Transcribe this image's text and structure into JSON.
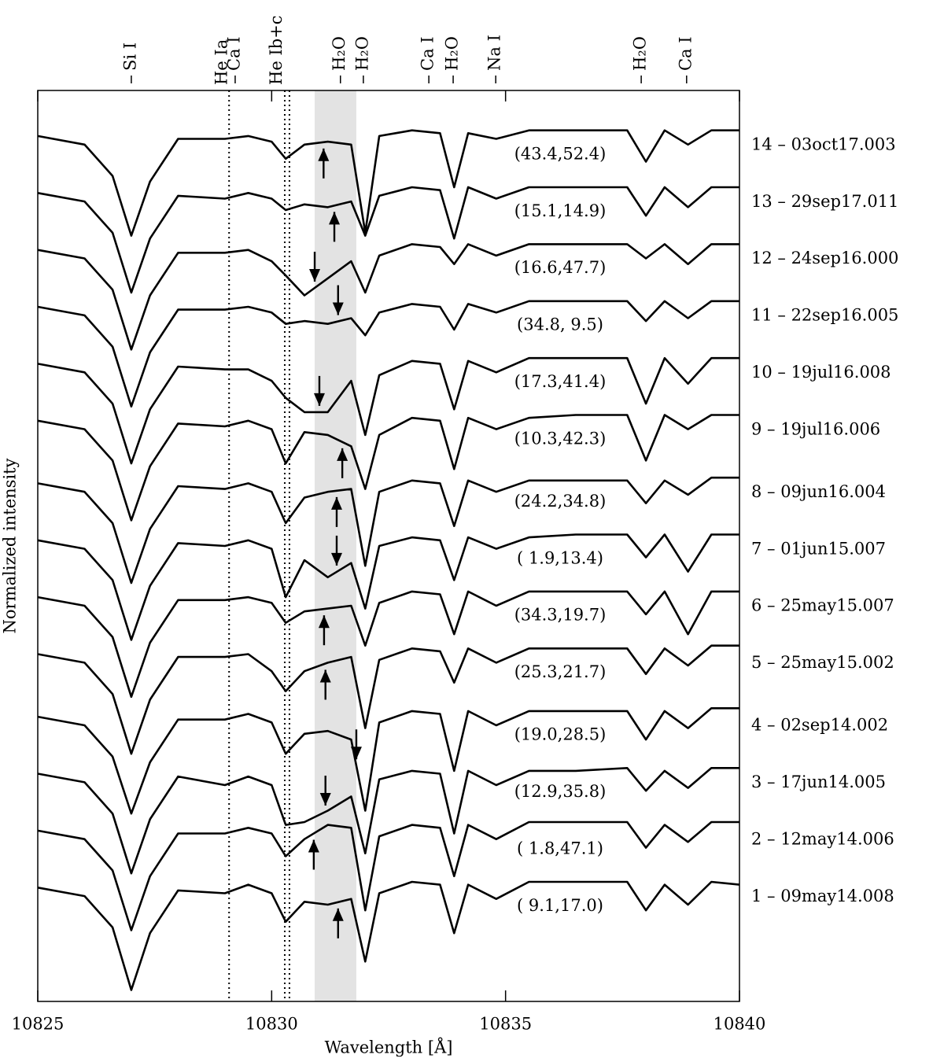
{
  "chart_data": {
    "type": "line",
    "x_label": "Wavelength [Å]",
    "y_label": "Normalized intensity",
    "xlim": [
      10825,
      10840
    ],
    "ylim": [
      0,
      16
    ],
    "xticks": [
      10825,
      10830,
      10835,
      10840
    ],
    "shaded_band": [
      10830.92,
      10831.81
    ],
    "shade_color": "#e3e3e3",
    "dotted_lines": [
      10829.09,
      10830.28,
      10830.38
    ],
    "line_labels": [
      {
        "label": "Si I",
        "x": 10827.0,
        "dash": true
      },
      {
        "label": "He Ia",
        "x": 10828.95,
        "dash": false
      },
      {
        "label": "Ca I",
        "x": 10829.22,
        "dash": true
      },
      {
        "label": "He Ib+c",
        "x": 10830.12,
        "dash": false
      },
      {
        "label": "H₂O",
        "x": 10831.47,
        "dash": true
      },
      {
        "label": "H₂O",
        "x": 10831.96,
        "dash": true
      },
      {
        "label": "Ca I",
        "x": 10833.36,
        "dash": true
      },
      {
        "label": "H₂O",
        "x": 10833.88,
        "dash": true
      },
      {
        "label": "Na I",
        "x": 10834.79,
        "dash": true
      },
      {
        "label": "H₂O",
        "x": 10837.9,
        "dash": true
      },
      {
        "label": "Ca I",
        "x": 10838.87,
        "dash": true
      }
    ],
    "x": [
      10825,
      10826,
      10826.6,
      10827,
      10827.4,
      10828,
      10829,
      10829.5,
      10830,
      10830.3,
      10830.7,
      10831.2,
      10831.7,
      10832,
      10832.3,
      10833,
      10833.6,
      10833.9,
      10834.2,
      10834.8,
      10835.5,
      10836.5,
      10837.6,
      10838,
      10838.4,
      10838.9,
      10839.4,
      10840
    ],
    "series": [
      {
        "name": "1 – 09may14.008",
        "annotation": "( 9.1,17.0)",
        "color": "#000000",
        "arrow": {
          "x": 10831.42,
          "direction": "up"
        },
        "values": [
          2.0,
          1.85,
          1.3,
          0.2,
          1.2,
          1.95,
          1.9,
          2.05,
          1.9,
          1.4,
          1.75,
          1.7,
          1.8,
          0.7,
          1.9,
          2.1,
          2.05,
          1.2,
          2.05,
          1.8,
          2.1,
          2.1,
          2.1,
          1.6,
          2.05,
          1.7,
          2.1,
          2.05
        ]
      },
      {
        "name": "2 – 12may14.006",
        "annotation": "( 1.8,47.1)",
        "color": "#000000",
        "arrow": {
          "x": 10830.9,
          "direction": "up"
        },
        "values": [
          3.0,
          2.85,
          2.3,
          1.25,
          2.2,
          2.95,
          2.95,
          3.05,
          2.95,
          2.55,
          2.85,
          3.1,
          3.05,
          1.6,
          2.9,
          3.1,
          3.05,
          2.2,
          3.1,
          2.85,
          3.15,
          3.15,
          3.15,
          2.7,
          3.1,
          2.8,
          3.15,
          3.15
        ]
      },
      {
        "name": "3 – 17jun14.005",
        "annotation": "(12.9,35.8)",
        "color": "#000000",
        "arrow": {
          "x": 10831.15,
          "direction": "down"
        },
        "values": [
          4.0,
          3.85,
          3.3,
          2.25,
          3.2,
          3.95,
          3.8,
          3.95,
          3.8,
          3.1,
          3.15,
          3.35,
          3.6,
          2.6,
          3.9,
          4.05,
          4.0,
          2.95,
          4.05,
          3.8,
          4.05,
          4.05,
          4.1,
          3.7,
          4.05,
          3.75,
          4.1,
          4.1
        ]
      },
      {
        "name": "4 – 02sep14.002",
        "annotation": "(19.0,28.5)",
        "color": "#000000",
        "arrow": {
          "x": 10831.81,
          "direction": "down"
        },
        "values": [
          5.0,
          4.85,
          4.3,
          3.3,
          4.2,
          4.95,
          4.95,
          5.05,
          4.9,
          4.35,
          4.7,
          4.75,
          4.6,
          3.35,
          4.9,
          5.1,
          5.05,
          4.05,
          5.1,
          4.85,
          5.1,
          5.1,
          5.1,
          4.6,
          5.1,
          4.8,
          5.15,
          5.15
        ]
      },
      {
        "name": "5 – 25may15.002",
        "annotation": "(25.3,21.7)",
        "color": "#000000",
        "arrow": {
          "x": 10831.15,
          "direction": "up"
        },
        "values": [
          6.1,
          5.95,
          5.4,
          4.35,
          5.3,
          6.05,
          6.05,
          6.1,
          5.8,
          5.45,
          5.8,
          5.95,
          6.05,
          4.8,
          6.0,
          6.2,
          6.15,
          5.6,
          6.2,
          5.95,
          6.2,
          6.2,
          6.2,
          5.75,
          6.2,
          5.9,
          6.25,
          6.25
        ]
      },
      {
        "name": "6 – 25may15.007",
        "annotation": "(34.3,19.7)",
        "color": "#000000",
        "arrow": {
          "x": 10831.12,
          "direction": "up"
        },
        "values": [
          7.1,
          6.95,
          6.4,
          5.35,
          6.3,
          7.05,
          7.05,
          7.1,
          7.0,
          6.65,
          6.85,
          6.9,
          6.95,
          6.25,
          7.0,
          7.2,
          7.15,
          6.45,
          7.2,
          6.95,
          7.2,
          7.2,
          7.2,
          6.8,
          7.2,
          6.45,
          7.2,
          7.2
        ]
      },
      {
        "name": "7 – 01jun15.007",
        "annotation": "( 1.9,13.4)",
        "color": "#000000",
        "arrow": {
          "x": 10831.39,
          "direction": "down"
        },
        "values": [
          8.1,
          7.95,
          7.4,
          6.35,
          7.3,
          8.05,
          8.0,
          8.1,
          7.95,
          7.1,
          7.75,
          7.45,
          7.7,
          6.9,
          8.0,
          8.15,
          8.1,
          7.4,
          8.15,
          7.95,
          8.15,
          8.2,
          8.2,
          7.8,
          8.2,
          7.55,
          8.2,
          8.2
        ]
      },
      {
        "name": "8 – 09jun16.004",
        "annotation": "(24.2,34.8)",
        "color": "#000000",
        "arrow": {
          "x": 10831.39,
          "direction": "up"
        },
        "values": [
          9.1,
          8.95,
          8.4,
          7.35,
          8.3,
          9.05,
          9.0,
          9.1,
          8.95,
          8.4,
          8.85,
          8.95,
          9.0,
          7.65,
          8.95,
          9.15,
          9.1,
          8.35,
          9.15,
          8.95,
          9.15,
          9.15,
          9.15,
          8.75,
          9.15,
          8.9,
          9.2,
          9.2
        ]
      },
      {
        "name": "9 – 19jul16.006",
        "annotation": "(10.3,42.3)",
        "color": "#000000",
        "arrow": {
          "x": 10831.51,
          "direction": "up"
        },
        "values": [
          10.2,
          10.05,
          9.5,
          8.45,
          9.4,
          10.15,
          10.1,
          10.2,
          10.05,
          9.45,
          10.0,
          9.95,
          9.75,
          9.0,
          9.95,
          10.25,
          10.2,
          9.35,
          10.25,
          10.05,
          10.25,
          10.3,
          10.3,
          9.5,
          10.3,
          10.05,
          10.3,
          10.3
        ]
      },
      {
        "name": "10 – 19jul16.008",
        "annotation": "(17.3,41.4)",
        "color": "#000000",
        "arrow": {
          "x": 10831.02,
          "direction": "down"
        },
        "values": [
          11.2,
          11.05,
          10.5,
          9.45,
          10.4,
          11.15,
          11.1,
          11.1,
          10.9,
          10.6,
          10.35,
          10.35,
          10.9,
          9.95,
          11.0,
          11.25,
          11.2,
          10.4,
          11.25,
          11.05,
          11.3,
          11.3,
          11.3,
          10.5,
          11.3,
          10.85,
          11.3,
          11.3
        ]
      },
      {
        "name": "11 – 22sep16.005",
        "annotation": "(34.8, 9.5)",
        "color": "#000000",
        "arrow": {
          "x": 10831.42,
          "direction": "down"
        },
        "values": [
          12.2,
          12.05,
          11.5,
          10.45,
          11.4,
          12.15,
          12.15,
          12.2,
          12.1,
          11.9,
          11.95,
          11.9,
          12.0,
          11.7,
          12.1,
          12.25,
          12.2,
          11.8,
          12.25,
          12.1,
          12.3,
          12.3,
          12.3,
          11.95,
          12.3,
          12.0,
          12.3,
          12.3
        ]
      },
      {
        "name": "12 – 24sep16.000",
        "annotation": "(16.6,47.7)",
        "color": "#000000",
        "arrow": {
          "x": 10830.92,
          "direction": "down"
        },
        "values": [
          13.2,
          13.05,
          12.5,
          11.45,
          12.4,
          13.15,
          13.15,
          13.2,
          13.0,
          12.75,
          12.4,
          12.7,
          13.0,
          12.45,
          13.1,
          13.3,
          13.25,
          12.95,
          13.3,
          13.1,
          13.3,
          13.3,
          13.3,
          13.05,
          13.3,
          12.95,
          13.3,
          13.3
        ]
      },
      {
        "name": "13 – 29sep17.011",
        "annotation": "(15.1,14.9)",
        "color": "#000000",
        "arrow": {
          "x": 10831.34,
          "direction": "up"
        },
        "values": [
          14.2,
          14.05,
          13.5,
          12.45,
          13.4,
          14.15,
          14.1,
          14.2,
          14.1,
          13.9,
          14.0,
          13.95,
          14.05,
          13.45,
          14.15,
          14.3,
          14.25,
          13.4,
          14.3,
          14.1,
          14.3,
          14.3,
          14.3,
          13.8,
          14.3,
          13.95,
          14.3,
          14.3
        ]
      },
      {
        "name": "14 – 03oct17.003",
        "annotation": "(43.4,52.4)",
        "color": "#000000",
        "arrow": {
          "x": 10831.11,
          "direction": "up"
        },
        "values": [
          15.2,
          15.05,
          14.5,
          13.45,
          14.4,
          15.15,
          15.15,
          15.2,
          15.1,
          14.8,
          15.05,
          15.1,
          15.05,
          13.5,
          15.2,
          15.3,
          15.25,
          14.3,
          15.25,
          15.15,
          15.3,
          15.3,
          15.3,
          14.75,
          15.3,
          15.05,
          15.3,
          15.3
        ]
      }
    ]
  }
}
